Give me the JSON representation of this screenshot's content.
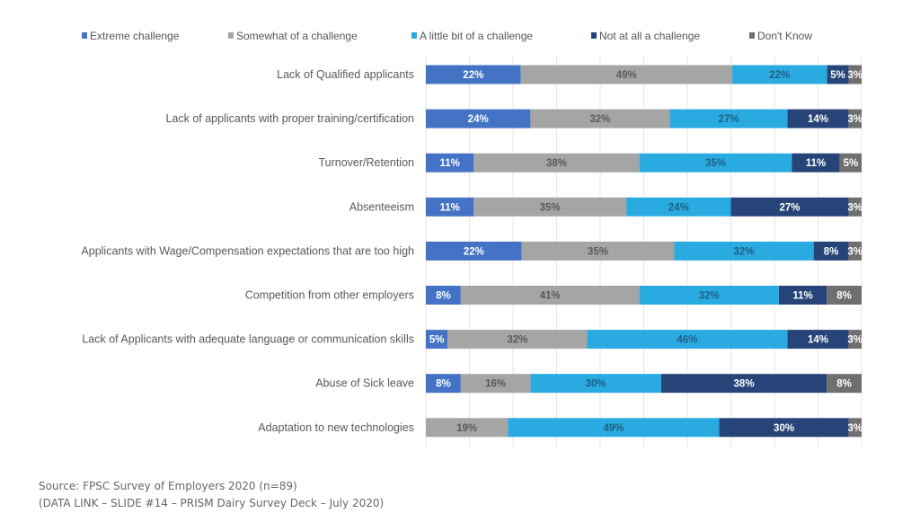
{
  "chart_data": {
    "type": "bar",
    "orientation": "horizontal",
    "stacked": "100%",
    "title": "",
    "xlabel": "",
    "ylabel": "",
    "xlim": [
      0,
      100
    ],
    "grid": true,
    "legend_position": "top",
    "categories": [
      "Lack of Qualified applicants",
      "Lack of applicants with proper training/certification",
      "Turnover/Retention",
      "Absenteeism",
      "Applicants with Wage/Compensation expectations that are too high",
      "Competition from other employers",
      "Lack of Applicants with adequate language or communication skills",
      "Abuse of Sick leave",
      "Adaptation to new technologies"
    ],
    "series": [
      {
        "name": "Extreme challenge",
        "color": "#4472c4",
        "label_color": "#ffffff",
        "values": [
          22,
          24,
          11,
          11,
          22,
          8,
          5,
          8,
          0
        ]
      },
      {
        "name": "Somewhat of a challenge",
        "color": "#a5a5a5",
        "label_color": "#595959",
        "values": [
          49,
          32,
          38,
          35,
          35,
          41,
          32,
          16,
          19
        ]
      },
      {
        "name": "A little bit of a challenge",
        "color": "#29abe2",
        "label_color": "#1f5f80",
        "values": [
          22,
          27,
          35,
          24,
          32,
          32,
          46,
          30,
          49
        ]
      },
      {
        "name": "Not at all a challenge",
        "color": "#264478",
        "label_color": "#ffffff",
        "values": [
          5,
          14,
          11,
          27,
          8,
          11,
          14,
          38,
          30
        ]
      },
      {
        "name": "Don't Know",
        "color": "#6f6f6f",
        "label_color": "#ffffff",
        "values": [
          3,
          3,
          5,
          3,
          3,
          8,
          3,
          8,
          3
        ]
      }
    ]
  },
  "footer": {
    "source": "Source: FPSC Survey of Employers 2020 (n=89)",
    "data_link": "(DATA LINK – SLIDE #14 – PRISM Dairy Survey Deck – July 2020)"
  }
}
